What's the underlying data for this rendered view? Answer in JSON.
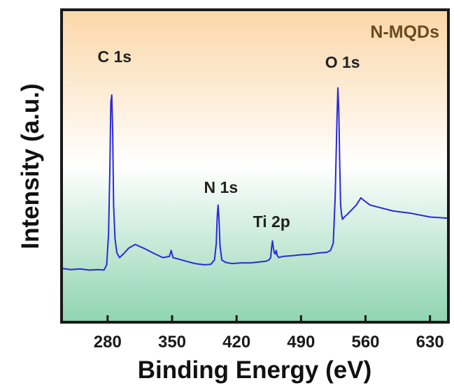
{
  "chart_data": {
    "type": "line",
    "title": "",
    "xlabel": "Binding Energy (eV)",
    "ylabel": "Intensity (a.u.)",
    "xlim": [
      230,
      650
    ],
    "ylim": [
      0,
      1
    ],
    "xticks": [
      280,
      350,
      420,
      490,
      560,
      630
    ],
    "y_tick_labels_shown": false,
    "grid": false,
    "legend": "none",
    "sample_label": "N-MQDs",
    "background_gradient": [
      "#fbd7a8",
      "#ffffff",
      "#8fd4b0"
    ],
    "line_color": "#2a2ad8",
    "annotations": [
      {
        "text": "C 1s",
        "x": 284.5
      },
      {
        "text": "N 1s",
        "x": 400
      },
      {
        "text": "Ti 2p",
        "x": 458
      },
      {
        "text": "O 1s",
        "x": 532
      }
    ],
    "series": [
      {
        "x": [
          230,
          240,
          250,
          260,
          270,
          276,
          279,
          281,
          282.5,
          283.5,
          284.5,
          285.5,
          286.5,
          288,
          290,
          293,
          297,
          303,
          310,
          320,
          330,
          340,
          347,
          349,
          351,
          356,
          365,
          375,
          385,
          392,
          396,
          398,
          399,
          400,
          401,
          402,
          404,
          408,
          415,
          425,
          435,
          445,
          452,
          455,
          457,
          458,
          459,
          460,
          461,
          462,
          463,
          464,
          466,
          470,
          480,
          490,
          500,
          510,
          518,
          522,
          525,
          527,
          529,
          530,
          531,
          532,
          533,
          534,
          535,
          537,
          540,
          545,
          550,
          555,
          558,
          565,
          575,
          590,
          610,
          630,
          650
        ],
        "y": [
          0.155,
          0.15,
          0.153,
          0.148,
          0.15,
          0.148,
          0.17,
          0.3,
          0.58,
          0.85,
          0.88,
          0.72,
          0.42,
          0.28,
          0.22,
          0.2,
          0.215,
          0.24,
          0.255,
          0.238,
          0.218,
          0.2,
          0.205,
          0.23,
          0.2,
          0.195,
          0.185,
          0.175,
          0.17,
          0.172,
          0.19,
          0.26,
          0.37,
          0.42,
          0.36,
          0.25,
          0.19,
          0.18,
          0.175,
          0.178,
          0.178,
          0.182,
          0.185,
          0.19,
          0.2,
          0.24,
          0.27,
          0.24,
          0.22,
          0.215,
          0.23,
          0.21,
          0.2,
          0.205,
          0.208,
          0.212,
          0.214,
          0.22,
          0.222,
          0.23,
          0.26,
          0.45,
          0.78,
          0.91,
          0.82,
          0.6,
          0.42,
          0.38,
          0.36,
          0.37,
          0.38,
          0.4,
          0.42,
          0.45,
          0.44,
          0.42,
          0.41,
          0.395,
          0.385,
          0.37,
          0.365
        ]
      }
    ]
  }
}
